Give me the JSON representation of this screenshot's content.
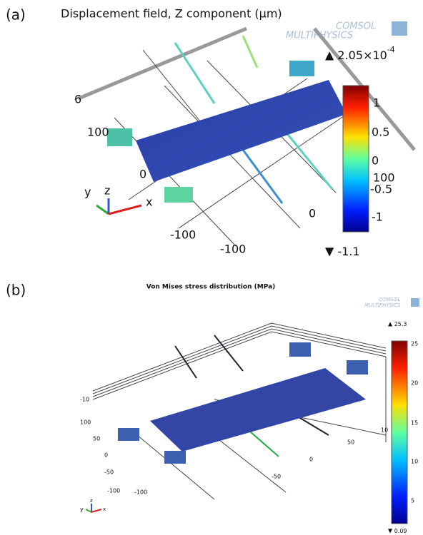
{
  "panels": [
    {
      "label": "(a)",
      "title": "Displacement field, Z component (µm)",
      "logo": [
        "COMSOL",
        "MULTIPHYSICS"
      ],
      "max": {
        "text": "2.05×10",
        "exponent": "-4"
      },
      "min": "-1.1",
      "colorbar_ticks": [
        "1",
        "0.5",
        "0",
        "-0.5",
        "-1"
      ],
      "axis_ticks": [
        "6",
        "100",
        "0",
        "-100",
        "-100",
        "0",
        "100"
      ],
      "triad": [
        "y",
        "z",
        "x"
      ]
    },
    {
      "label": "(b)",
      "title": "Von Mises stress distribution (MPa)",
      "logo": [
        "COMSOL",
        "MULTIPHYSICS"
      ],
      "max": {
        "text": "25.3"
      },
      "min": "0.09",
      "colorbar_ticks": [
        "25",
        "20",
        "15",
        "10",
        "5"
      ],
      "axis_ticks": [
        "-10",
        "100",
        "50",
        "0",
        "-50",
        "-100",
        "-100",
        "-50",
        "0",
        "50",
        "10"
      ],
      "triad": [
        "y",
        "z",
        "x"
      ]
    }
  ]
}
